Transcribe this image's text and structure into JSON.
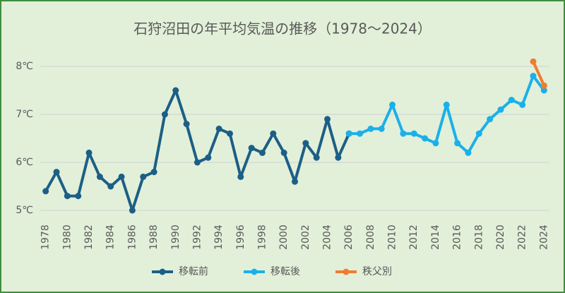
{
  "chart_data": {
    "type": "line",
    "title": "石狩沼田の年平均気温の推移（1978～2024）",
    "categories": [
      "1978",
      null,
      "1980",
      null,
      "1982",
      null,
      "1984",
      null,
      "1986",
      null,
      "1988",
      null,
      "1990",
      null,
      "1992",
      null,
      "1994",
      null,
      "1996",
      null,
      "1998",
      null,
      "2000",
      null,
      "2002",
      null,
      "2004",
      null,
      "2006",
      null,
      "2008",
      null,
      "2010",
      null,
      "2012",
      null,
      "2014",
      null,
      "2016",
      null,
      "2018",
      null,
      "2020",
      null,
      "2022",
      null,
      "2024"
    ],
    "series": [
      {
        "name": "移転前",
        "color": "#1c5f86",
        "values": [
          5.4,
          5.8,
          5.3,
          5.3,
          6.2,
          5.7,
          5.5,
          5.7,
          5.0,
          5.7,
          5.8,
          7.0,
          7.5,
          6.8,
          6.0,
          6.1,
          6.7,
          6.6,
          5.7,
          6.3,
          6.2,
          6.6,
          6.2,
          5.6,
          6.4,
          6.1,
          6.9,
          6.1,
          6.6,
          null,
          null,
          null,
          null,
          null,
          null,
          null,
          null,
          null,
          null,
          null,
          null,
          null,
          null,
          null,
          null,
          null,
          null
        ]
      },
      {
        "name": "移転後",
        "color": "#1ab0ea",
        "values": [
          null,
          null,
          null,
          null,
          null,
          null,
          null,
          null,
          null,
          null,
          null,
          null,
          null,
          null,
          null,
          null,
          null,
          null,
          null,
          null,
          null,
          null,
          null,
          null,
          null,
          null,
          null,
          null,
          6.6,
          6.6,
          6.7,
          6.7,
          7.2,
          6.6,
          6.6,
          6.5,
          6.4,
          7.2,
          6.4,
          6.2,
          6.6,
          6.9,
          7.1,
          7.3,
          7.2,
          7.8,
          7.5
        ]
      },
      {
        "name": "秩父別",
        "color": "#ed7d31",
        "values": [
          null,
          null,
          null,
          null,
          null,
          null,
          null,
          null,
          null,
          null,
          null,
          null,
          null,
          null,
          null,
          null,
          null,
          null,
          null,
          null,
          null,
          null,
          null,
          null,
          null,
          null,
          null,
          null,
          null,
          null,
          null,
          null,
          null,
          null,
          null,
          null,
          null,
          null,
          null,
          null,
          null,
          null,
          null,
          null,
          null,
          8.1,
          7.6
        ]
      }
    ],
    "ylim": [
      5,
      8.3
    ],
    "yticks": [
      {
        "value": 5,
        "label": "5℃"
      },
      {
        "value": 6,
        "label": "6℃"
      },
      {
        "value": 7,
        "label": "7℃"
      },
      {
        "value": 8,
        "label": "8℃"
      }
    ],
    "grid": true,
    "legend": "bottom"
  }
}
